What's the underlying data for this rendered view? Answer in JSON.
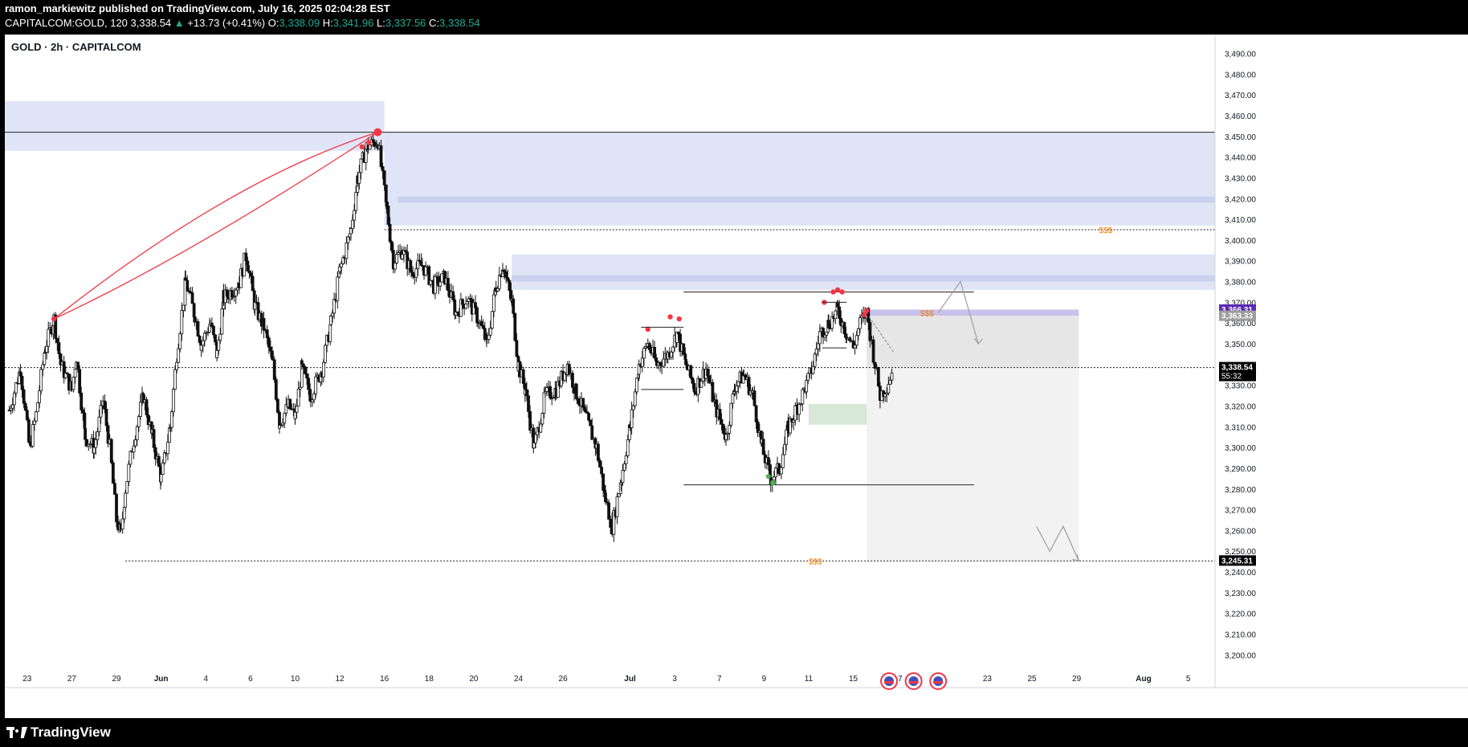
{
  "header": {
    "publisher_line": "ramon_markiewitz published on TradingView.com, July 16, 2025 02:04:28 EST",
    "symbol": "CAPITALCOM:GOLD, 120",
    "last": "3,338.54",
    "change": "+13.73 (+0.41%)",
    "o_label": "O:",
    "o": "3,338.09",
    "h_label": "H:",
    "h": "3,341.96",
    "l_label": "L:",
    "l": "3,337.56",
    "c_label": "C:",
    "c": "3,338.54"
  },
  "footer": {
    "brand": "TradingView"
  },
  "chart_data": {
    "type": "candlestick",
    "title": "GOLD · 2h · CAPITALCOM",
    "ylim": [
      3192,
      3496
    ],
    "y_ticks": [
      3200,
      3210,
      3220,
      3230,
      3240,
      3250,
      3260,
      3270,
      3280,
      3290,
      3300,
      3310,
      3320,
      3330,
      3340,
      3350,
      3360,
      3370,
      3380,
      3390,
      3400,
      3410,
      3420,
      3430,
      3440,
      3450,
      3460,
      3470,
      3480,
      3490
    ],
    "x_ticks": [
      {
        "label": "23",
        "x": 0.8
      },
      {
        "label": "27",
        "x": 2.8
      },
      {
        "label": "29",
        "x": 4.8
      },
      {
        "label": "Jun",
        "x": 6.8
      },
      {
        "label": "4",
        "x": 8.8
      },
      {
        "label": "6",
        "x": 10.8
      },
      {
        "label": "10",
        "x": 12.8
      },
      {
        "label": "12",
        "x": 14.8
      },
      {
        "label": "16",
        "x": 16.8
      },
      {
        "label": "18",
        "x": 18.8
      },
      {
        "label": "20",
        "x": 20.8
      },
      {
        "label": "24",
        "x": 22.8
      },
      {
        "label": "26",
        "x": 24.8
      },
      {
        "label": "Jul",
        "x": 27.8
      },
      {
        "label": "3",
        "x": 29.8
      },
      {
        "label": "7",
        "x": 31.8
      },
      {
        "label": "9",
        "x": 33.8
      },
      {
        "label": "11",
        "x": 35.8
      },
      {
        "label": "15",
        "x": 37.8
      },
      {
        "label": "17",
        "x": 39.8
      },
      {
        "label": "21",
        "x": 41.8
      },
      {
        "label": "23",
        "x": 43.8
      },
      {
        "label": "25",
        "x": 45.8
      },
      {
        "label": "29",
        "x": 47.8
      },
      {
        "label": "Aug",
        "x": 50.8
      },
      {
        "label": "5",
        "x": 52.8
      }
    ],
    "x_range": [
      -0.2,
      54
    ],
    "price_path": [
      [
        0,
        3318
      ],
      [
        0.5,
        3338
      ],
      [
        0.9,
        3300
      ],
      [
        1.2,
        3316
      ],
      [
        1.6,
        3348
      ],
      [
        2.0,
        3362
      ],
      [
        2.3,
        3340
      ],
      [
        2.8,
        3328
      ],
      [
        3.0,
        3344
      ],
      [
        3.4,
        3305
      ],
      [
        3.8,
        3300
      ],
      [
        4.2,
        3322
      ],
      [
        4.5,
        3300
      ],
      [
        4.8,
        3265
      ],
      [
        5.0,
        3258
      ],
      [
        5.2,
        3280
      ],
      [
        5.5,
        3300
      ],
      [
        6.0,
        3325
      ],
      [
        6.4,
        3305
      ],
      [
        6.8,
        3285
      ],
      [
        7.2,
        3310
      ],
      [
        7.5,
        3345
      ],
      [
        7.9,
        3380
      ],
      [
        8.3,
        3364
      ],
      [
        8.6,
        3350
      ],
      [
        9.0,
        3360
      ],
      [
        9.3,
        3345
      ],
      [
        9.6,
        3372
      ],
      [
        10.0,
        3376
      ],
      [
        10.3,
        3380
      ],
      [
        10.6,
        3393
      ],
      [
        11.0,
        3368
      ],
      [
        11.4,
        3358
      ],
      [
        11.8,
        3340
      ],
      [
        12.1,
        3312
      ],
      [
        12.5,
        3320
      ],
      [
        12.8,
        3315
      ],
      [
        13.1,
        3338
      ],
      [
        13.5,
        3325
      ],
      [
        14.0,
        3338
      ],
      [
        14.4,
        3360
      ],
      [
        14.8,
        3385
      ],
      [
        15.3,
        3405
      ],
      [
        15.6,
        3430
      ],
      [
        16.0,
        3445
      ],
      [
        16.5,
        3448
      ],
      [
        16.9,
        3415
      ],
      [
        17.2,
        3390
      ],
      [
        17.6,
        3395
      ],
      [
        18.0,
        3385
      ],
      [
        18.5,
        3388
      ],
      [
        19.0,
        3378
      ],
      [
        19.5,
        3382
      ],
      [
        20.0,
        3365
      ],
      [
        20.5,
        3372
      ],
      [
        21.0,
        3362
      ],
      [
        21.4,
        3350
      ],
      [
        21.8,
        3378
      ],
      [
        22.1,
        3388
      ],
      [
        22.5,
        3370
      ],
      [
        22.8,
        3340
      ],
      [
        23.1,
        3328
      ],
      [
        23.5,
        3300
      ],
      [
        24.0,
        3325
      ],
      [
        24.5,
        3328
      ],
      [
        25.0,
        3340
      ],
      [
        25.4,
        3326
      ],
      [
        25.8,
        3315
      ],
      [
        26.3,
        3300
      ],
      [
        26.7,
        3275
      ],
      [
        27.0,
        3262
      ],
      [
        27.4,
        3285
      ],
      [
        27.8,
        3310
      ],
      [
        28.2,
        3340
      ],
      [
        28.6,
        3350
      ],
      [
        29.0,
        3340
      ],
      [
        29.5,
        3345
      ],
      [
        29.9,
        3355
      ],
      [
        30.3,
        3340
      ],
      [
        30.7,
        3328
      ],
      [
        31.2,
        3338
      ],
      [
        31.6,
        3320
      ],
      [
        32.1,
        3305
      ],
      [
        32.5,
        3330
      ],
      [
        32.9,
        3335
      ],
      [
        33.3,
        3325
      ],
      [
        33.7,
        3300
      ],
      [
        34.1,
        3285
      ],
      [
        34.5,
        3290
      ],
      [
        34.9,
        3310
      ],
      [
        35.3,
        3320
      ],
      [
        35.7,
        3330
      ],
      [
        36.0,
        3340
      ],
      [
        36.3,
        3355
      ],
      [
        36.7,
        3360
      ],
      [
        37.1,
        3366
      ],
      [
        37.5,
        3355
      ],
      [
        37.8,
        3348
      ],
      [
        38.1,
        3360
      ],
      [
        38.4,
        3365
      ],
      [
        38.7,
        3345
      ],
      [
        39.0,
        3325
      ],
      [
        39.3,
        3330
      ],
      [
        39.6,
        3338.54
      ]
    ],
    "zones": [
      {
        "name": "supply-left",
        "x0": -0.2,
        "x1": 16.8,
        "y0": 3443,
        "y1": 3467
      },
      {
        "name": "supply-main",
        "x0": 16.8,
        "x1": 54,
        "y0": 3407,
        "y1": 3452
      },
      {
        "name": "supply-band",
        "x0": 17.4,
        "x1": 54,
        "y0": 3418,
        "y1": 3421
      },
      {
        "name": "supply-mid",
        "x0": 22.5,
        "x1": 54,
        "y0": 3376,
        "y1": 3393
      },
      {
        "name": "supply-mid-band",
        "x0": 22.5,
        "x1": 54,
        "y0": 3380,
        "y1": 3383
      },
      {
        "name": "order-block",
        "x0": 38.4,
        "x1": 47.9,
        "y0": 3363.5,
        "y1": 3366.5
      },
      {
        "name": "fvg-small",
        "x0": 38.4,
        "x1": 39.6,
        "y0": 3342,
        "y1": 3351
      },
      {
        "name": "demand-green",
        "x0": 35.8,
        "x1": 38.6,
        "y0": 3311,
        "y1": 3321
      },
      {
        "name": "short-risk",
        "x0": 38.4,
        "x1": 47.9,
        "y0": 3338.5,
        "y1": 3363.5
      },
      {
        "name": "short-target",
        "x0": 38.4,
        "x1": 47.9,
        "y0": 3245.3,
        "y1": 3338.5
      }
    ],
    "levels": [
      {
        "name": "high-line",
        "price": 3452,
        "x0": -0.2,
        "x1": 54
      },
      {
        "name": "liq-upper",
        "price": 3405,
        "x0": 16.8,
        "x1": 54
      },
      {
        "name": "current",
        "price": 3338.54,
        "x0": -0.2,
        "x1": 54
      },
      {
        "name": "liq-lower",
        "price": 3245.31,
        "x0": 5.2,
        "x1": 54
      },
      {
        "name": "range-top",
        "price": 3375,
        "x0": 30.2,
        "x1": 43.2
      },
      {
        "name": "range-bottom",
        "price": 3282,
        "x0": 30.2,
        "x1": 43.2
      }
    ],
    "liquidity_labels": [
      {
        "text": "$$$",
        "x": 48.8,
        "price": 3405
      },
      {
        "text": "$$$",
        "x": 40.8,
        "price": 3365
      },
      {
        "text": "$$$",
        "x": 35.8,
        "price": 3245.31
      }
    ],
    "price_badges": [
      {
        "text": "3,366.31",
        "price": 3366.31,
        "color": "#5b2bb5"
      },
      {
        "text": "3,363.33",
        "price": 3363.33,
        "color": "#9e9e9e"
      },
      {
        "text": "3,338.54",
        "price": 3338.54,
        "color": "#000000",
        "sub": "55:32"
      },
      {
        "text": "3,245.31",
        "price": 3245.31,
        "color": "#000000"
      }
    ],
    "projection_upper": [
      [
        41.6,
        3365
      ],
      [
        42.6,
        3380
      ],
      [
        43.4,
        3350
      ]
    ],
    "projection_lower": [
      [
        46.0,
        3262
      ],
      [
        46.6,
        3250
      ],
      [
        47.2,
        3262
      ],
      [
        47.9,
        3245.31
      ]
    ],
    "event_icons_x": [
      39.4,
      40.5,
      41.6
    ],
    "accent": {
      "red": "#f23645",
      "green": "#4caf50",
      "zone": "#d9e0f5",
      "grey": "#e8e8e8"
    }
  }
}
